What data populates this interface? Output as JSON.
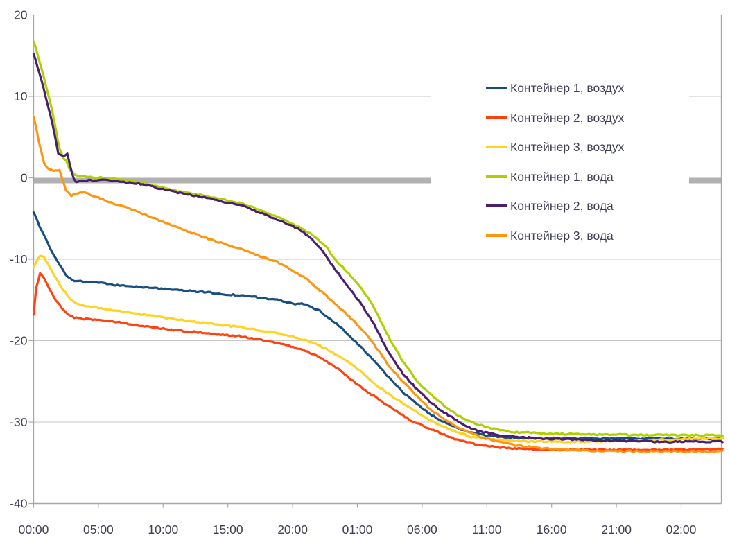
{
  "colors": {
    "background": "#FFFFFF",
    "gridline": "#C7C7C7",
    "zero_band": "#B1B1B1",
    "axis": "#A8A8A8",
    "label_text": "#3F4053"
  },
  "chart_data": {
    "type": "line",
    "x_axis": {
      "tick_labels": [
        "00:00",
        "05:00",
        "10:00",
        "15:00",
        "20:00",
        "01:00",
        "06:00",
        "11:00",
        "16:00",
        "21:00",
        "02:00"
      ],
      "tick_hours": [
        0,
        5,
        10,
        15,
        20,
        25,
        30,
        35,
        40,
        45,
        50
      ],
      "range_hours": [
        0,
        53.2
      ]
    },
    "y_axis": {
      "tick_labels": [
        "20",
        "10",
        "0",
        "-10",
        "-20",
        "-30",
        "-40"
      ],
      "tick_values": [
        20,
        10,
        0,
        -10,
        -20,
        -30,
        -40
      ],
      "range": [
        -40,
        20
      ]
    },
    "grid": {
      "horizontal": true,
      "vertical": false,
      "thick_zero_line": true
    },
    "legend": {
      "position": "right-center-overlay"
    },
    "series": [
      {
        "name": "Контейнер 1, воздух",
        "color": "#1A4E82",
        "points": [
          [
            0,
            -4.2
          ],
          [
            0.6,
            -6.5
          ],
          [
            1.4,
            -9
          ],
          [
            2.3,
            -11.5
          ],
          [
            2.8,
            -12.4
          ],
          [
            3.3,
            -12.7
          ],
          [
            4.4,
            -12.8
          ],
          [
            6,
            -13.1
          ],
          [
            8.1,
            -13.4
          ],
          [
            10.8,
            -13.7
          ],
          [
            13.5,
            -14.1
          ],
          [
            16.2,
            -14.5
          ],
          [
            17.8,
            -14.8
          ],
          [
            18.8,
            -15
          ],
          [
            19.6,
            -15.3
          ],
          [
            20.2,
            -15.5
          ],
          [
            20.7,
            -15.4
          ],
          [
            21.3,
            -15.8
          ],
          [
            21.8,
            -16.2
          ],
          [
            22.1,
            -16.3
          ],
          [
            22.6,
            -17
          ],
          [
            23.1,
            -17.6
          ],
          [
            23.7,
            -18.3
          ],
          [
            24.2,
            -19.2
          ],
          [
            24.7,
            -19.9
          ],
          [
            25.3,
            -20.8
          ],
          [
            26.3,
            -22.5
          ],
          [
            27.4,
            -24.5
          ],
          [
            28.5,
            -26.3
          ],
          [
            29.6,
            -27.8
          ],
          [
            30.6,
            -29
          ],
          [
            31.7,
            -30
          ],
          [
            32.8,
            -30.8
          ],
          [
            33.8,
            -31.3
          ],
          [
            34.9,
            -31.6
          ],
          [
            36,
            -31.8
          ],
          [
            37,
            -31.9
          ],
          [
            39.2,
            -32
          ],
          [
            42.9,
            -32
          ],
          [
            48.3,
            -32
          ],
          [
            53.2,
            -32
          ]
        ]
      },
      {
        "name": "Контейнер 2, воздух",
        "color": "#FF420E",
        "points": [
          [
            0,
            -16.8
          ],
          [
            0.2,
            -13.6
          ],
          [
            0.5,
            -11.7
          ],
          [
            0.8,
            -12.3
          ],
          [
            1.2,
            -13.5
          ],
          [
            1.7,
            -15
          ],
          [
            2.3,
            -16.3
          ],
          [
            2.8,
            -17
          ],
          [
            3.3,
            -17.2
          ],
          [
            4.4,
            -17.4
          ],
          [
            6,
            -17.6
          ],
          [
            8.1,
            -18.1
          ],
          [
            10.8,
            -18.7
          ],
          [
            13.5,
            -19.1
          ],
          [
            16.2,
            -19.5
          ],
          [
            18.8,
            -20.3
          ],
          [
            20.5,
            -21
          ],
          [
            21.5,
            -21.6
          ],
          [
            22.6,
            -22.5
          ],
          [
            23.7,
            -23.7
          ],
          [
            24.7,
            -25
          ],
          [
            25.8,
            -26.3
          ],
          [
            26.9,
            -27.5
          ],
          [
            28,
            -28.6
          ],
          [
            29,
            -29.7
          ],
          [
            30.1,
            -30.5
          ],
          [
            31.2,
            -31.2
          ],
          [
            32.2,
            -31.9
          ],
          [
            33.3,
            -32.4
          ],
          [
            34.4,
            -32.8
          ],
          [
            35.4,
            -33
          ],
          [
            37,
            -33.2
          ],
          [
            39.2,
            -33.4
          ],
          [
            42.9,
            -33.4
          ],
          [
            48.3,
            -33.4
          ],
          [
            53.2,
            -33.3
          ]
        ]
      },
      {
        "name": "Контейнер 3, воздух",
        "color": "#FFD320",
        "points": [
          [
            0,
            -11
          ],
          [
            0.5,
            -9.5
          ],
          [
            0.8,
            -9.7
          ],
          [
            1.4,
            -11.5
          ],
          [
            2.3,
            -13.8
          ],
          [
            3.1,
            -15.3
          ],
          [
            3.6,
            -15.6
          ],
          [
            4.4,
            -15.8
          ],
          [
            6,
            -16.2
          ],
          [
            8.1,
            -16.7
          ],
          [
            10.8,
            -17.3
          ],
          [
            13.5,
            -17.9
          ],
          [
            16.2,
            -18.4
          ],
          [
            18.8,
            -19.1
          ],
          [
            21,
            -19.9
          ],
          [
            22.6,
            -21
          ],
          [
            24.2,
            -22.5
          ],
          [
            25.3,
            -23.8
          ],
          [
            26.3,
            -25.3
          ],
          [
            27.4,
            -26.5
          ],
          [
            28.5,
            -27.7
          ],
          [
            29.6,
            -28.8
          ],
          [
            30.6,
            -29.8
          ],
          [
            31.7,
            -30.6
          ],
          [
            32.8,
            -31.3
          ],
          [
            33.8,
            -31.8
          ],
          [
            34.9,
            -32
          ],
          [
            36,
            -32.2
          ],
          [
            37,
            -32.3
          ],
          [
            39.2,
            -32.4
          ],
          [
            42.9,
            -32.4
          ],
          [
            48.3,
            -32.2
          ],
          [
            53.2,
            -32
          ]
        ]
      },
      {
        "name": "Контейнер 1, вода",
        "color": "#AECF00",
        "points": [
          [
            0,
            16.8
          ],
          [
            0.6,
            13.5
          ],
          [
            1.4,
            8.5
          ],
          [
            2,
            3.5
          ],
          [
            2.3,
            2.4
          ],
          [
            2.5,
            2.2
          ],
          [
            2.8,
            1
          ],
          [
            3.2,
            0.3
          ],
          [
            3.6,
            0.2
          ],
          [
            4.4,
            0.1
          ],
          [
            5.5,
            0
          ],
          [
            7.1,
            -0.3
          ],
          [
            8.1,
            -0.5
          ],
          [
            10.8,
            -1.5
          ],
          [
            13.5,
            -2.3
          ],
          [
            16.2,
            -3.2
          ],
          [
            18.8,
            -4.8
          ],
          [
            20.5,
            -6
          ],
          [
            21.5,
            -7
          ],
          [
            22.6,
            -8.5
          ],
          [
            23.4,
            -10.3
          ],
          [
            24.2,
            -11.5
          ],
          [
            25.3,
            -13.5
          ],
          [
            26.3,
            -16
          ],
          [
            27.4,
            -19.5
          ],
          [
            28.5,
            -22.5
          ],
          [
            29.6,
            -25
          ],
          [
            30.6,
            -26.5
          ],
          [
            31.7,
            -28
          ],
          [
            32.8,
            -29.2
          ],
          [
            33.8,
            -30
          ],
          [
            34.9,
            -30.6
          ],
          [
            36,
            -31
          ],
          [
            37,
            -31.2
          ],
          [
            39.2,
            -31.4
          ],
          [
            42.9,
            -31.5
          ],
          [
            48.3,
            -31.6
          ],
          [
            53.2,
            -31.6
          ]
        ]
      },
      {
        "name": "Контейнер 2, вода",
        "color": "#4B1F6F",
        "points": [
          [
            0,
            15.3
          ],
          [
            0.6,
            12
          ],
          [
            1.4,
            7
          ],
          [
            1.9,
            3
          ],
          [
            2.3,
            2.6
          ],
          [
            2.6,
            2.9
          ],
          [
            2.8,
            1.5
          ],
          [
            3.1,
            -0.1
          ],
          [
            3.3,
            -0.6
          ],
          [
            3.6,
            -0.4
          ],
          [
            4.4,
            -0.3
          ],
          [
            5.5,
            -0.3
          ],
          [
            7.1,
            -0.5
          ],
          [
            8.1,
            -0.7
          ],
          [
            10.8,
            -1.7
          ],
          [
            13.5,
            -2.5
          ],
          [
            16.2,
            -3.5
          ],
          [
            18.8,
            -5.1
          ],
          [
            20.5,
            -6.3
          ],
          [
            21.5,
            -7.5
          ],
          [
            22.3,
            -9
          ],
          [
            23.1,
            -10.8
          ],
          [
            24.2,
            -13.2
          ],
          [
            25.3,
            -15.5
          ],
          [
            26.3,
            -18
          ],
          [
            27.4,
            -21.5
          ],
          [
            28.5,
            -24
          ],
          [
            29.6,
            -26
          ],
          [
            30.6,
            -27.5
          ],
          [
            31.7,
            -28.8
          ],
          [
            32.8,
            -29.9
          ],
          [
            33.8,
            -30.8
          ],
          [
            34.9,
            -31.3
          ],
          [
            36,
            -31.6
          ],
          [
            37,
            -31.8
          ],
          [
            39.2,
            -32
          ],
          [
            42.9,
            -32.2
          ],
          [
            48.3,
            -32.4
          ],
          [
            53.2,
            -32.4
          ]
        ]
      },
      {
        "name": "Контейнер 3, вода",
        "color": "#FF950E",
        "points": [
          [
            0,
            7.6
          ],
          [
            0.4,
            4.5
          ],
          [
            0.8,
            1.8
          ],
          [
            1.2,
            1
          ],
          [
            1.7,
            0.9
          ],
          [
            2,
            1
          ],
          [
            2.5,
            -1.5
          ],
          [
            2.9,
            -2.2
          ],
          [
            3.3,
            -1.9
          ],
          [
            3.9,
            -1.8
          ],
          [
            5.5,
            -2.8
          ],
          [
            8.1,
            -4.2
          ],
          [
            10.8,
            -5.9
          ],
          [
            13.5,
            -7.5
          ],
          [
            16.2,
            -8.9
          ],
          [
            18.8,
            -10.3
          ],
          [
            21,
            -12.3
          ],
          [
            22.6,
            -14.5
          ],
          [
            24.2,
            -16.8
          ],
          [
            25.3,
            -18.5
          ],
          [
            26.3,
            -20.5
          ],
          [
            27.4,
            -23
          ],
          [
            28.5,
            -25
          ],
          [
            29.6,
            -26.8
          ],
          [
            30.6,
            -28.4
          ],
          [
            31.7,
            -29.6
          ],
          [
            32.8,
            -30.7
          ],
          [
            33.8,
            -31.4
          ],
          [
            34.9,
            -32
          ],
          [
            36,
            -32.4
          ],
          [
            37,
            -32.8
          ],
          [
            39.2,
            -33.2
          ],
          [
            42.9,
            -33.5
          ],
          [
            48.3,
            -33.6
          ],
          [
            53.2,
            -33.6
          ]
        ]
      }
    ]
  }
}
